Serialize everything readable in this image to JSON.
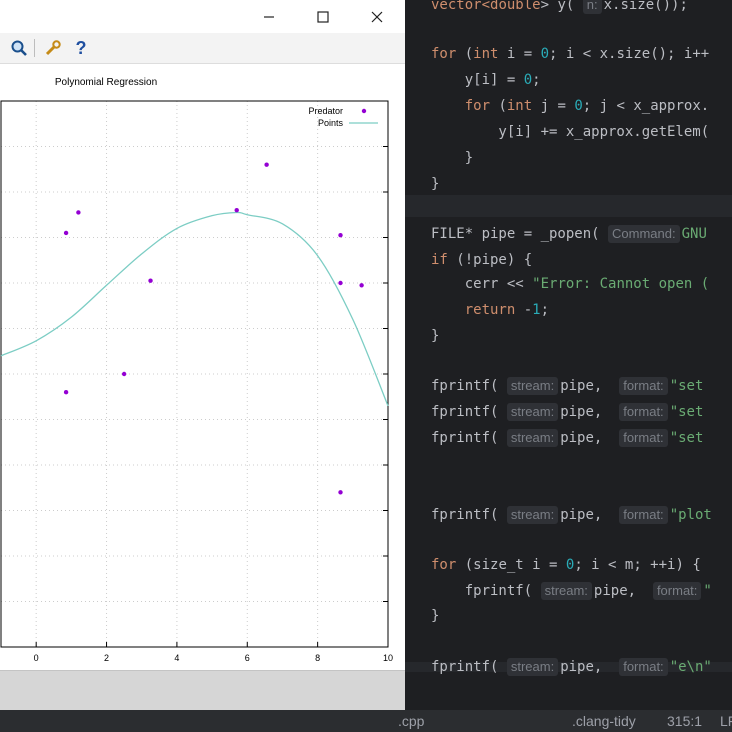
{
  "gnuplot_window": {
    "title_buttons": {
      "minimize": "—",
      "maximize": "☐",
      "close": "✕"
    },
    "toolbar": {
      "zoom_icon": "magnifier-icon",
      "settings_icon": "wrench-icon",
      "help_label": "?"
    }
  },
  "chart_data": {
    "type": "scatter",
    "title": "Polynomial Regression",
    "xlim": [
      -1,
      10
    ],
    "ylim": [
      -4,
      8
    ],
    "xticks": [
      0,
      2,
      4,
      6,
      8,
      10
    ],
    "grid": true,
    "legend_position": "top-right",
    "series": [
      {
        "name": "Predator",
        "kind": "points",
        "color": "#9400d3",
        "x": [
          0.85,
          1.2,
          0.85,
          3.25,
          2.5,
          5.7,
          6.55,
          8.65,
          8.65,
          9.25,
          8.65
        ],
        "y": [
          5.1,
          5.55,
          1.6,
          4.05,
          2.0,
          5.6,
          6.6,
          5.05,
          4.0,
          3.95,
          -0.6
        ]
      },
      {
        "name": "Points",
        "kind": "line",
        "color": "#7ccdc4",
        "x": [
          -1,
          0,
          1,
          2,
          3,
          4,
          5,
          5.7,
          6,
          7,
          8,
          9,
          10
        ],
        "y": [
          2.4,
          2.73,
          3.25,
          3.95,
          4.64,
          5.2,
          5.48,
          5.55,
          5.5,
          5.3,
          4.6,
          3.2,
          1.3
        ]
      }
    ]
  },
  "editor": {
    "lines": [
      [
        {
          "t": "vector<",
          "c": "kw"
        },
        {
          "t": "double",
          "c": "kw"
        },
        {
          "t": "> y( ",
          "c": "op"
        },
        {
          "hint": "n:"
        },
        {
          "t": "x.size());",
          "c": "op"
        }
      ],
      [],
      [
        {
          "t": "for",
          "c": "kw"
        },
        {
          "t": " (",
          "c": "op"
        },
        {
          "t": "int",
          "c": "kw"
        },
        {
          "t": " i = ",
          "c": "op"
        },
        {
          "t": "0",
          "c": "num"
        },
        {
          "t": "; i < x.size(); i++",
          "c": "op"
        }
      ],
      [
        {
          "t": "    y[i] = ",
          "c": "op"
        },
        {
          "t": "0",
          "c": "num"
        },
        {
          "t": ";",
          "c": "op"
        }
      ],
      [
        {
          "t": "    ",
          "c": "op"
        },
        {
          "t": "for",
          "c": "kw"
        },
        {
          "t": " (",
          "c": "op"
        },
        {
          "t": "int",
          "c": "kw"
        },
        {
          "t": " j = ",
          "c": "op"
        },
        {
          "t": "0",
          "c": "num"
        },
        {
          "t": "; j < x_approx.",
          "c": "op"
        }
      ],
      [
        {
          "t": "        y[i] += x_approx.getElem(",
          "c": "op"
        }
      ],
      [
        {
          "t": "    }",
          "c": "op"
        }
      ],
      [
        {
          "t": "}",
          "c": "op"
        }
      ],
      [],
      [
        {
          "t": "FILE* pipe = _popen( ",
          "c": "op"
        },
        {
          "hint": "Command:"
        },
        {
          "t": "GNU",
          "c": "str"
        }
      ],
      [
        {
          "t": "if",
          "c": "kw"
        },
        {
          "t": " (!pipe) {",
          "c": "op"
        }
      ],
      [
        {
          "t": "    cerr << ",
          "c": "op"
        },
        {
          "t": "\"Error: Cannot open (",
          "c": "str"
        }
      ],
      [
        {
          "t": "    ",
          "c": "op"
        },
        {
          "t": "return",
          "c": "kw"
        },
        {
          "t": " -",
          "c": "op"
        },
        {
          "t": "1",
          "c": "num"
        },
        {
          "t": ";",
          "c": "op"
        }
      ],
      [
        {
          "t": "}",
          "c": "op"
        }
      ],
      [],
      [
        {
          "t": "fprintf( ",
          "c": "op"
        },
        {
          "hint": "stream:"
        },
        {
          "t": "pipe,  ",
          "c": "op"
        },
        {
          "hint": "format:"
        },
        {
          "t": "\"set ",
          "c": "str"
        }
      ],
      [
        {
          "t": "fprintf( ",
          "c": "op"
        },
        {
          "hint": "stream:"
        },
        {
          "t": "pipe,  ",
          "c": "op"
        },
        {
          "hint": "format:"
        },
        {
          "t": "\"set ",
          "c": "str"
        }
      ],
      [
        {
          "t": "fprintf( ",
          "c": "op"
        },
        {
          "hint": "stream:"
        },
        {
          "t": "pipe,  ",
          "c": "op"
        },
        {
          "hint": "format:"
        },
        {
          "t": "\"set ",
          "c": "str"
        }
      ],
      [],
      [],
      [
        {
          "t": "fprintf( ",
          "c": "op"
        },
        {
          "hint": "stream:"
        },
        {
          "t": "pipe,  ",
          "c": "op"
        },
        {
          "hint": "format:"
        },
        {
          "t": "\"plot",
          "c": "str"
        }
      ],
      [],
      [
        {
          "t": "for",
          "c": "kw"
        },
        {
          "t": " (size_t i = ",
          "c": "op"
        },
        {
          "t": "0",
          "c": "num"
        },
        {
          "t": "; i < m; ++i) {",
          "c": "op"
        }
      ],
      [
        {
          "t": "    fprintf( ",
          "c": "op"
        },
        {
          "hint": "stream:"
        },
        {
          "t": "pipe,  ",
          "c": "op"
        },
        {
          "hint": "format:"
        },
        {
          "t": "\"",
          "c": "str"
        }
      ],
      [
        {
          "t": "}",
          "c": "op"
        }
      ],
      [],
      [
        {
          "t": "fprintf( ",
          "c": "op"
        },
        {
          "hint": "stream:"
        },
        {
          "t": "pipe,  ",
          "c": "op"
        },
        {
          "hint": "format:"
        },
        {
          "t": "\"e\\n\"",
          "c": "str"
        }
      ]
    ]
  },
  "statusbar": {
    "file_tab": ".cpp",
    "linter": ".clang-tidy",
    "position": "315:1",
    "line_ending": "LF"
  }
}
